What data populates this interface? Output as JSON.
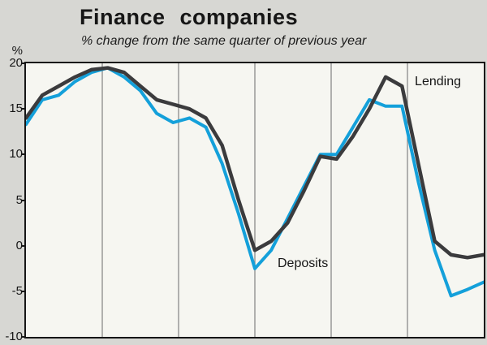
{
  "chart_data": {
    "type": "line",
    "title": "Finance companies",
    "subtitle": "% change from the same quarter of previous year",
    "ylabel": "%",
    "ylim": [
      -10,
      20
    ],
    "y_ticks": [
      20,
      15,
      10,
      5,
      0,
      -5,
      -10
    ],
    "x_gridline_divisions": 6,
    "grid_color": "#8a8a8a",
    "legend_position": "inline-annotations",
    "series": [
      {
        "name": "Deposits",
        "color": "#14a0da",
        "stroke_width": 4,
        "values": [
          13.3,
          16,
          16.5,
          18,
          19,
          19.5,
          18.5,
          17,
          14.5,
          13.5,
          14,
          13,
          9,
          3.5,
          -2.5,
          -0.5,
          3,
          6.5,
          10,
          10,
          13,
          16,
          15.3,
          15.3,
          7,
          -0.5,
          -5.5,
          -4.8,
          -4
        ]
      },
      {
        "name": "Lending",
        "color": "#3b3b3d",
        "stroke_width": 4.5,
        "values": [
          14,
          16.5,
          17.5,
          18.5,
          19.3,
          19.5,
          19,
          17.5,
          16,
          15.5,
          15,
          14,
          11,
          5,
          -0.5,
          0.5,
          2.5,
          6,
          9.8,
          9.5,
          12,
          15,
          18.5,
          17.5,
          9,
          0.5,
          -1,
          -1.3,
          -1
        ]
      }
    ]
  }
}
